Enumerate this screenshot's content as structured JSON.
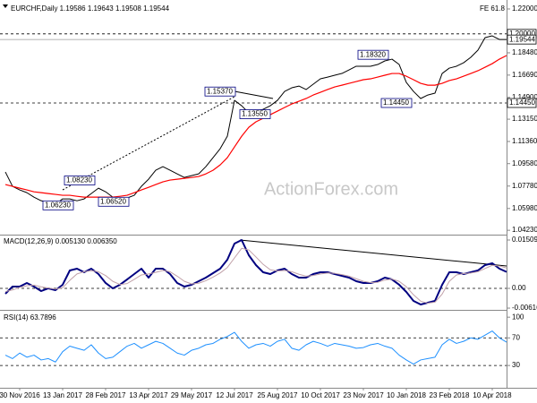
{
  "chart_data": [
    {
      "type": "line",
      "title": "EURCHF,Daily  1.19586 1.19643 1.19508 1.19544",
      "fib_label": "FE 61.8",
      "watermark": "ActionForex.com",
      "ylim": [
        1.0388,
        1.2236
      ],
      "yticks": [
        {
          "value": 1.22,
          "label": "1.22000"
        },
        {
          "value": 1.1848,
          "label": "1.18480"
        },
        {
          "value": 1.1669,
          "label": "1.16690"
        },
        {
          "value": 1.149,
          "label": "1.14900"
        },
        {
          "value": 1.1315,
          "label": "1.13150"
        },
        {
          "value": 1.1136,
          "label": "1.11360"
        },
        {
          "value": 1.0958,
          "label": "1.09580"
        },
        {
          "value": 1.0778,
          "label": "1.07780"
        },
        {
          "value": 1.0598,
          "label": "1.05980"
        },
        {
          "value": 1.0423,
          "label": "1.04230"
        }
      ],
      "levels": [
        {
          "value": 1.2,
          "label": "1.20000"
        },
        {
          "value": 1.19544,
          "label": "1.19544"
        },
        {
          "value": 1.1445,
          "label": "1.14450"
        }
      ],
      "annotations": [
        {
          "value": 1.1537,
          "label": "1.15370"
        },
        {
          "value": 1.0823,
          "label": "1.08230"
        },
        {
          "value": 1.0623,
          "label": "1.06230"
        },
        {
          "value": 1.0652,
          "label": "1.06520"
        },
        {
          "value": 1.1355,
          "label": "1.13550"
        },
        {
          "value": 1.1832,
          "label": "1.18320"
        },
        {
          "value": 1.1445,
          "label": "1.14450"
        }
      ],
      "series": [
        {
          "color": "#000000",
          "values": [
            1.0891,
            1.0776,
            1.0747,
            1.0725,
            1.0689,
            1.066,
            1.0646,
            1.0632,
            1.0675,
            1.0675,
            1.066,
            1.0675,
            1.0718,
            1.0761,
            1.0732,
            1.0689,
            1.0675,
            1.0682,
            1.0704,
            1.0776,
            1.0833,
            1.0905,
            1.0934,
            1.0905,
            1.0876,
            1.0847,
            1.0862,
            1.0876,
            1.0934,
            1.1006,
            1.1078,
            1.1178,
            1.1466,
            1.1423,
            1.1365,
            1.138,
            1.1394,
            1.1423,
            1.1466,
            1.1538,
            1.1567,
            1.1581,
            1.1553,
            1.1596,
            1.1639,
            1.1653,
            1.1668,
            1.1682,
            1.1711,
            1.174,
            1.174,
            1.174,
            1.1754,
            1.1783,
            1.1797,
            1.1754,
            1.161,
            1.1538,
            1.1481,
            1.1509,
            1.1524,
            1.1682,
            1.1725,
            1.174,
            1.1768,
            1.1812,
            1.1869,
            1.197,
            1.1984,
            1.1955,
            1.1955
          ]
        },
        {
          "color": "#ff0000",
          "values": [
            1.079,
            1.0776,
            1.0761,
            1.0747,
            1.0732,
            1.0725,
            1.0718,
            1.0711,
            1.0704,
            1.0704,
            1.0696,
            1.0689,
            1.0689,
            1.0689,
            1.0689,
            1.0689,
            1.0696,
            1.0704,
            1.0725,
            1.0747,
            1.0768,
            1.079,
            1.0812,
            1.0826,
            1.0833,
            1.084,
            1.0847,
            1.0855,
            1.0876,
            1.0905,
            1.0948,
            1.1006,
            1.1092,
            1.1178,
            1.125,
            1.1294,
            1.1322,
            1.1351,
            1.138,
            1.1409,
            1.1437,
            1.1459,
            1.1481,
            1.1509,
            1.1531,
            1.1553,
            1.1574,
            1.1588,
            1.1603,
            1.1617,
            1.1632,
            1.1639,
            1.1653,
            1.1668,
            1.1682,
            1.1682,
            1.166,
            1.1632,
            1.1603,
            1.1588,
            1.1588,
            1.1603,
            1.1625,
            1.1639,
            1.166,
            1.1682,
            1.1704,
            1.1732,
            1.1761,
            1.1797,
            1.1826
          ]
        }
      ]
    },
    {
      "type": "line",
      "title": "MACD(12,26,9) 0.005130 0.006350",
      "ylim": [
        -0.00643,
        0.01621
      ],
      "yticks": [
        0.015092,
        {
          "value": 0,
          "label": "0.00"
        },
        -0.006163
      ],
      "grid": [
        false,
        true,
        false
      ],
      "series": [
        {
          "color": "#000080",
          "values": [
            -0.00168,
            0.00056,
            0.00056,
            0.00168,
            0.00056,
            -0.00084,
            0,
            -0.00056,
            0.00112,
            0.00559,
            0.00615,
            0.00503,
            0.00615,
            0.00447,
            0.00168,
            0,
            0.00112,
            0.00279,
            0.00447,
            0.00615,
            0.00335,
            0.00615,
            0.00615,
            0.00447,
            0.00168,
            0.00056,
            0.00112,
            0.00224,
            0.00335,
            0.00475,
            0.00615,
            0.00894,
            0.01397,
            0.01509,
            0.01034,
            0.00727,
            0.00503,
            0.00447,
            0.00559,
            0.00615,
            0.00447,
            0.00335,
            0.00335,
            0.00447,
            0.00503,
            0.00503,
            0.00447,
            0.00391,
            0.00335,
            0.00224,
            0.00168,
            0.00168,
            0.00224,
            0.00335,
            0.00279,
            0.00112,
            -0.00112,
            -0.00391,
            -0.00503,
            -0.00447,
            -0.00391,
            0.00112,
            0.00503,
            0.00503,
            0.00447,
            0.00503,
            0.00559,
            0.00727,
            0.00783,
            0.00615,
            0.00513
          ]
        },
        {
          "color": "#c0a0a8",
          "values": [
            -0.001,
            -0.0005,
            0.0003,
            0.0008,
            0.001,
            0.0005,
            0.0001,
            -0.0002,
            0.0002,
            0.0025,
            0.0045,
            0.0052,
            0.0055,
            0.0052,
            0.004,
            0.0022,
            0.0012,
            0.0015,
            0.0028,
            0.0042,
            0.0045,
            0.005,
            0.0056,
            0.0052,
            0.0038,
            0.0022,
            0.0014,
            0.0016,
            0.0024,
            0.0035,
            0.0048,
            0.0065,
            0.0095,
            0.0125,
            0.012,
            0.0098,
            0.0075,
            0.0058,
            0.0054,
            0.0056,
            0.0052,
            0.0044,
            0.0038,
            0.004,
            0.0045,
            0.0048,
            0.0047,
            0.0043,
            0.0038,
            0.003,
            0.0022,
            0.0018,
            0.0019,
            0.0026,
            0.0029,
            0.0022,
            0.0005,
            -0.002,
            -0.004,
            -0.0046,
            -0.0043,
            -0.0018,
            0.0022,
            0.0042,
            0.0046,
            0.0048,
            0.0052,
            0.0062,
            0.0072,
            0.007,
            0.00635
          ]
        }
      ]
    },
    {
      "type": "line",
      "title": "RSI(14) 63.7896",
      "ylim": [
        -1,
        108
      ],
      "yticks": [
        100,
        70,
        30
      ],
      "grid": [
        false,
        true,
        true
      ],
      "categories": [
        null,
        null,
        "30 Nov 2016",
        null,
        null,
        null,
        null,
        null,
        "13 Jan 2017",
        null,
        null,
        null,
        null,
        null,
        "28 Feb 2017",
        null,
        null,
        null,
        null,
        null,
        "13 Apr 2017",
        null,
        null,
        null,
        null,
        null,
        "29 May 2017",
        null,
        null,
        null,
        null,
        null,
        "12 Jul 2017",
        null,
        null,
        null,
        null,
        null,
        "25 Aug 2017",
        null,
        null,
        null,
        null,
        null,
        "10 Oct 2017",
        null,
        null,
        null,
        null,
        null,
        "23 Nov 2017",
        null,
        null,
        null,
        null,
        null,
        "10 Jan 2018",
        null,
        null,
        null,
        null,
        null,
        "23 Feb 2018",
        null,
        null,
        null,
        null,
        null,
        "10 Apr 2018",
        null,
        null
      ],
      "series": [
        {
          "color": "#1e90ff",
          "values": [
            45,
            40,
            48,
            42,
            45,
            38,
            40,
            35,
            50,
            58,
            55,
            52,
            60,
            48,
            40,
            42,
            50,
            58,
            62,
            55,
            60,
            65,
            62,
            55,
            48,
            45,
            52,
            55,
            60,
            62,
            68,
            72,
            78,
            65,
            55,
            60,
            62,
            58,
            65,
            68,
            55,
            52,
            60,
            65,
            62,
            58,
            62,
            60,
            58,
            55,
            56,
            60,
            62,
            58,
            55,
            45,
            38,
            32,
            38,
            40,
            42,
            60,
            68,
            62,
            65,
            70,
            68,
            74,
            80,
            70,
            63.7896
          ]
        }
      ]
    }
  ]
}
